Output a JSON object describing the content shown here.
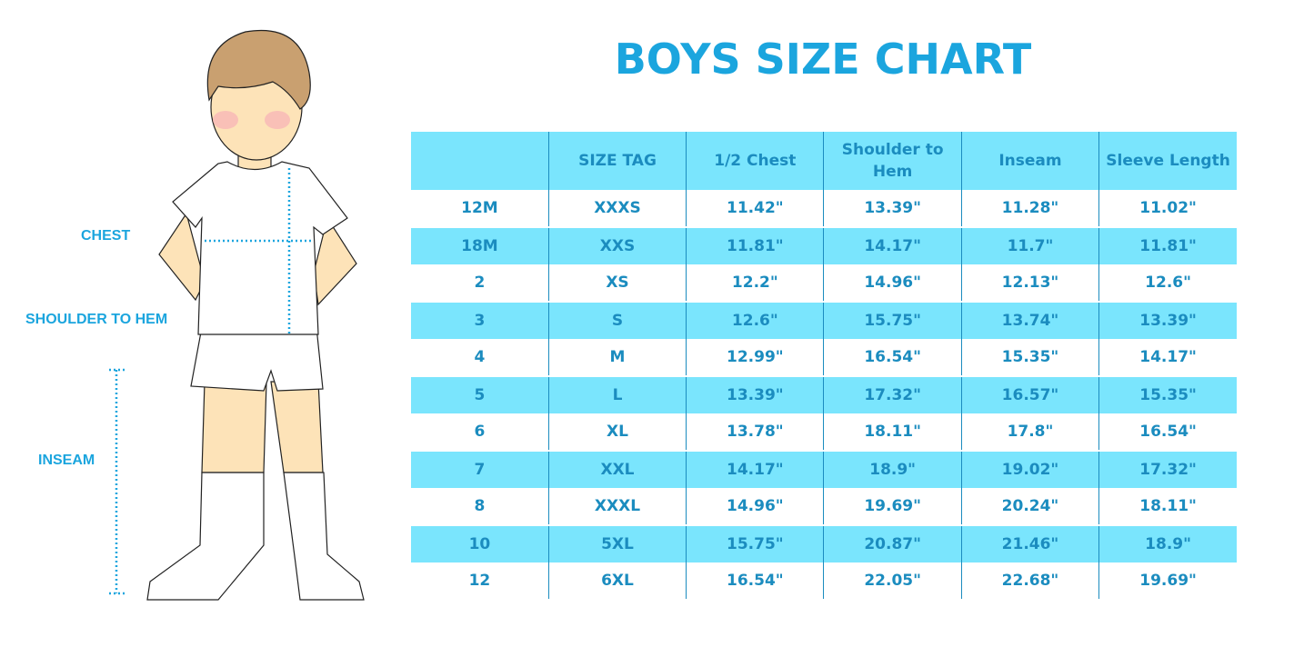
{
  "title": "BOYS SIZE CHART",
  "measure_labels": {
    "chest": "CHEST",
    "shoulder_to_hem": "SHOULDER TO HEM",
    "inseam": "INSEAM"
  },
  "colors": {
    "accent": "#1ba5de",
    "row_fill": "#7ae5fd",
    "text": "#1b8cbf"
  },
  "table": {
    "headers": [
      "",
      "SIZE TAG",
      "1/2 Chest",
      "Shoulder to Hem",
      "Inseam",
      "Sleeve Length"
    ],
    "rows": [
      [
        "12M",
        "XXXS",
        "11.42\"",
        "13.39\"",
        "11.28\"",
        "11.02\""
      ],
      [
        "18M",
        "XXS",
        "11.81\"",
        "14.17\"",
        "11.7\"",
        "11.81\""
      ],
      [
        "2",
        "XS",
        "12.2\"",
        "14.96\"",
        "12.13\"",
        "12.6\""
      ],
      [
        "3",
        "S",
        "12.6\"",
        "15.75\"",
        "13.74\"",
        "13.39\""
      ],
      [
        "4",
        "M",
        "12.99\"",
        "16.54\"",
        "15.35\"",
        "14.17\""
      ],
      [
        "5",
        "L",
        "13.39\"",
        "17.32\"",
        "16.57\"",
        "15.35\""
      ],
      [
        "6",
        "XL",
        "13.78\"",
        "18.11\"",
        "17.8\"",
        "16.54\""
      ],
      [
        "7",
        "XXL",
        "14.17\"",
        "18.9\"",
        "19.02\"",
        "17.32\""
      ],
      [
        "8",
        "XXXL",
        "14.96\"",
        "19.69\"",
        "20.24\"",
        "18.11\""
      ],
      [
        "10",
        "5XL",
        "15.75\"",
        "20.87\"",
        "21.46\"",
        "18.9\""
      ],
      [
        "12",
        "6XL",
        "16.54\"",
        "22.05\"",
        "22.68\"",
        "19.69\""
      ]
    ]
  }
}
